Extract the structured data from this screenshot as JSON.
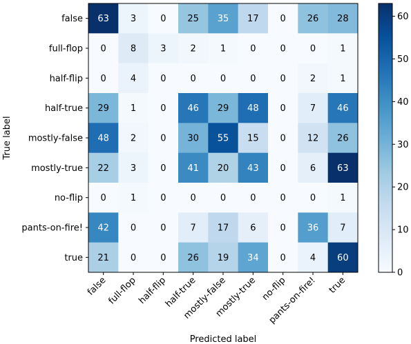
{
  "chart_data": {
    "type": "heatmap",
    "title": "",
    "xlabel": "Predicted label",
    "ylabel": "True label",
    "x_categories": [
      "false",
      "full-flop",
      "half-flip",
      "half-true",
      "mostly-false",
      "mostly-true",
      "no-flip",
      "pants-on-fire!",
      "true"
    ],
    "y_categories": [
      "false",
      "full-flop",
      "half-flip",
      "half-true",
      "mostly-false",
      "mostly-true",
      "no-flip",
      "pants-on-fire!",
      "true"
    ],
    "values": [
      [
        63,
        3,
        0,
        25,
        35,
        17,
        0,
        26,
        28
      ],
      [
        0,
        8,
        3,
        2,
        1,
        0,
        0,
        0,
        1
      ],
      [
        0,
        4,
        0,
        0,
        0,
        0,
        0,
        2,
        1
      ],
      [
        29,
        1,
        0,
        46,
        29,
        48,
        0,
        7,
        46
      ],
      [
        48,
        2,
        0,
        30,
        55,
        15,
        0,
        12,
        26
      ],
      [
        22,
        3,
        0,
        41,
        20,
        43,
        0,
        6,
        63
      ],
      [
        0,
        1,
        0,
        0,
        0,
        0,
        0,
        0,
        1
      ],
      [
        42,
        0,
        0,
        7,
        17,
        6,
        0,
        36,
        7
      ],
      [
        21,
        0,
        0,
        26,
        19,
        34,
        0,
        4,
        60
      ]
    ],
    "colormap": "Blues",
    "colorbar": {
      "range": [
        0,
        63
      ],
      "ticks": [
        0,
        10,
        20,
        30,
        40,
        50,
        60
      ]
    },
    "grid": false
  }
}
